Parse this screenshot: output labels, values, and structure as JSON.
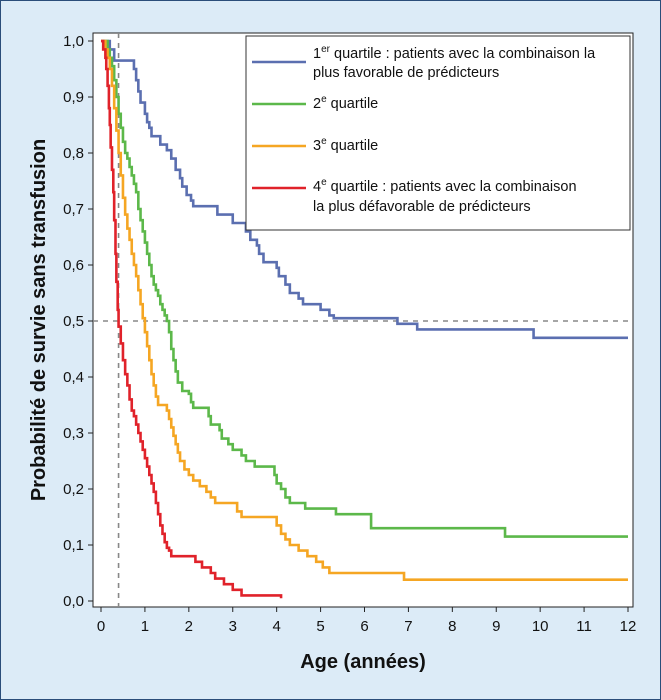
{
  "chart_data": {
    "type": "line",
    "step": true,
    "xlabel": "Age (années)",
    "ylabel": "Probabilité de survie sans transfusion",
    "xlim": [
      0,
      12
    ],
    "ylim": [
      0,
      1
    ],
    "x_ticks": [
      "0",
      "1",
      "2",
      "3",
      "4",
      "5",
      "6",
      "7",
      "8",
      "9",
      "10",
      "11",
      "12"
    ],
    "y_ticks": [
      "0,0",
      "0,1",
      "0,2",
      "0,3",
      "0,4",
      "0,5",
      "0,6",
      "0,7",
      "0,8",
      "0,9",
      "1,0"
    ],
    "reference_lines": {
      "y_median": 0.5,
      "x_median_worst": 0.4
    },
    "legend_position": "top-right",
    "series": [
      {
        "name_parts": [
          "1",
          "er",
          " quartile : patients avec la combinaison la",
          "plus favorable de prédicteurs"
        ],
        "color": "#5b6fb0",
        "points": [
          [
            0,
            1.0
          ],
          [
            0.2,
            0.985
          ],
          [
            0.3,
            0.965
          ],
          [
            0.7,
            0.965
          ],
          [
            0.75,
            0.95
          ],
          [
            0.8,
            0.93
          ],
          [
            0.85,
            0.91
          ],
          [
            0.9,
            0.89
          ],
          [
            1.0,
            0.87
          ],
          [
            1.05,
            0.855
          ],
          [
            1.1,
            0.845
          ],
          [
            1.15,
            0.83
          ],
          [
            1.3,
            0.83
          ],
          [
            1.35,
            0.815
          ],
          [
            1.5,
            0.805
          ],
          [
            1.6,
            0.79
          ],
          [
            1.7,
            0.77
          ],
          [
            1.8,
            0.755
          ],
          [
            1.85,
            0.74
          ],
          [
            1.95,
            0.725
          ],
          [
            2.05,
            0.715
          ],
          [
            2.1,
            0.705
          ],
          [
            2.6,
            0.705
          ],
          [
            2.65,
            0.69
          ],
          [
            2.95,
            0.69
          ],
          [
            3.0,
            0.675
          ],
          [
            3.3,
            0.66
          ],
          [
            3.4,
            0.645
          ],
          [
            3.55,
            0.635
          ],
          [
            3.6,
            0.62
          ],
          [
            3.7,
            0.605
          ],
          [
            4.0,
            0.595
          ],
          [
            4.05,
            0.58
          ],
          [
            4.2,
            0.565
          ],
          [
            4.3,
            0.55
          ],
          [
            4.5,
            0.54
          ],
          [
            4.6,
            0.53
          ],
          [
            5.0,
            0.52
          ],
          [
            5.2,
            0.51
          ],
          [
            5.3,
            0.505
          ],
          [
            6.7,
            0.505
          ],
          [
            6.75,
            0.495
          ],
          [
            7.15,
            0.495
          ],
          [
            7.2,
            0.485
          ],
          [
            9.8,
            0.485
          ],
          [
            9.85,
            0.47
          ],
          [
            12.0,
            0.47
          ]
        ]
      },
      {
        "name_parts": [
          "2",
          "e",
          " quartile",
          ""
        ],
        "color": "#5cb84a",
        "points": [
          [
            0,
            1.0
          ],
          [
            0.15,
            0.985
          ],
          [
            0.2,
            0.97
          ],
          [
            0.25,
            0.955
          ],
          [
            0.3,
            0.93
          ],
          [
            0.35,
            0.9
          ],
          [
            0.4,
            0.87
          ],
          [
            0.45,
            0.845
          ],
          [
            0.5,
            0.82
          ],
          [
            0.55,
            0.8
          ],
          [
            0.6,
            0.79
          ],
          [
            0.65,
            0.775
          ],
          [
            0.7,
            0.76
          ],
          [
            0.75,
            0.745
          ],
          [
            0.8,
            0.73
          ],
          [
            0.85,
            0.7
          ],
          [
            0.9,
            0.68
          ],
          [
            0.95,
            0.66
          ],
          [
            1.0,
            0.64
          ],
          [
            1.05,
            0.62
          ],
          [
            1.1,
            0.6
          ],
          [
            1.15,
            0.58
          ],
          [
            1.2,
            0.565
          ],
          [
            1.25,
            0.555
          ],
          [
            1.3,
            0.545
          ],
          [
            1.35,
            0.53
          ],
          [
            1.4,
            0.52
          ],
          [
            1.45,
            0.51
          ],
          [
            1.5,
            0.5
          ],
          [
            1.55,
            0.48
          ],
          [
            1.6,
            0.45
          ],
          [
            1.65,
            0.43
          ],
          [
            1.7,
            0.41
          ],
          [
            1.75,
            0.39
          ],
          [
            1.85,
            0.375
          ],
          [
            2.0,
            0.37
          ],
          [
            2.05,
            0.355
          ],
          [
            2.1,
            0.345
          ],
          [
            2.4,
            0.345
          ],
          [
            2.45,
            0.33
          ],
          [
            2.5,
            0.315
          ],
          [
            2.7,
            0.305
          ],
          [
            2.75,
            0.29
          ],
          [
            2.9,
            0.28
          ],
          [
            3.0,
            0.27
          ],
          [
            3.2,
            0.26
          ],
          [
            3.3,
            0.25
          ],
          [
            3.5,
            0.24
          ],
          [
            3.9,
            0.24
          ],
          [
            3.95,
            0.225
          ],
          [
            4.0,
            0.21
          ],
          [
            4.1,
            0.2
          ],
          [
            4.2,
            0.185
          ],
          [
            4.3,
            0.175
          ],
          [
            4.6,
            0.175
          ],
          [
            4.65,
            0.165
          ],
          [
            5.3,
            0.165
          ],
          [
            5.35,
            0.155
          ],
          [
            6.1,
            0.155
          ],
          [
            6.15,
            0.13
          ],
          [
            9.15,
            0.13
          ],
          [
            9.2,
            0.115
          ],
          [
            12.0,
            0.115
          ]
        ]
      },
      {
        "name_parts": [
          "3",
          "e",
          " quartile",
          ""
        ],
        "color": "#f5a623",
        "points": [
          [
            0,
            1.0
          ],
          [
            0.1,
            0.985
          ],
          [
            0.15,
            0.97
          ],
          [
            0.2,
            0.95
          ],
          [
            0.25,
            0.92
          ],
          [
            0.3,
            0.88
          ],
          [
            0.35,
            0.84
          ],
          [
            0.4,
            0.8
          ],
          [
            0.45,
            0.76
          ],
          [
            0.5,
            0.72
          ],
          [
            0.55,
            0.69
          ],
          [
            0.6,
            0.665
          ],
          [
            0.65,
            0.645
          ],
          [
            0.7,
            0.62
          ],
          [
            0.75,
            0.6
          ],
          [
            0.8,
            0.58
          ],
          [
            0.85,
            0.555
          ],
          [
            0.9,
            0.53
          ],
          [
            0.95,
            0.505
          ],
          [
            1.0,
            0.48
          ],
          [
            1.05,
            0.455
          ],
          [
            1.1,
            0.43
          ],
          [
            1.15,
            0.405
          ],
          [
            1.2,
            0.385
          ],
          [
            1.25,
            0.365
          ],
          [
            1.3,
            0.35
          ],
          [
            1.5,
            0.34
          ],
          [
            1.55,
            0.325
          ],
          [
            1.6,
            0.31
          ],
          [
            1.65,
            0.295
          ],
          [
            1.7,
            0.28
          ],
          [
            1.75,
            0.265
          ],
          [
            1.8,
            0.25
          ],
          [
            1.9,
            0.235
          ],
          [
            2.0,
            0.225
          ],
          [
            2.1,
            0.215
          ],
          [
            2.25,
            0.205
          ],
          [
            2.4,
            0.195
          ],
          [
            2.5,
            0.185
          ],
          [
            2.6,
            0.175
          ],
          [
            3.0,
            0.175
          ],
          [
            3.1,
            0.16
          ],
          [
            3.2,
            0.15
          ],
          [
            3.9,
            0.15
          ],
          [
            4.0,
            0.135
          ],
          [
            4.1,
            0.12
          ],
          [
            4.2,
            0.11
          ],
          [
            4.3,
            0.1
          ],
          [
            4.5,
            0.09
          ],
          [
            4.7,
            0.08
          ],
          [
            4.9,
            0.07
          ],
          [
            5.05,
            0.06
          ],
          [
            5.2,
            0.05
          ],
          [
            6.85,
            0.05
          ],
          [
            6.9,
            0.038
          ],
          [
            12.0,
            0.038
          ]
        ]
      },
      {
        "name_parts": [
          "4",
          "e",
          " quartile : patients avec la combinaison",
          "la plus défavorable de prédicteurs"
        ],
        "color": "#e0222a",
        "points": [
          [
            0,
            1.0
          ],
          [
            0.05,
            0.985
          ],
          [
            0.1,
            0.97
          ],
          [
            0.12,
            0.95
          ],
          [
            0.15,
            0.92
          ],
          [
            0.18,
            0.88
          ],
          [
            0.2,
            0.85
          ],
          [
            0.22,
            0.81
          ],
          [
            0.25,
            0.77
          ],
          [
            0.28,
            0.73
          ],
          [
            0.3,
            0.68
          ],
          [
            0.33,
            0.62
          ],
          [
            0.35,
            0.57
          ],
          [
            0.38,
            0.52
          ],
          [
            0.4,
            0.49
          ],
          [
            0.45,
            0.46
          ],
          [
            0.5,
            0.43
          ],
          [
            0.55,
            0.405
          ],
          [
            0.6,
            0.385
          ],
          [
            0.65,
            0.36
          ],
          [
            0.7,
            0.34
          ],
          [
            0.75,
            0.33
          ],
          [
            0.8,
            0.315
          ],
          [
            0.85,
            0.3
          ],
          [
            0.9,
            0.285
          ],
          [
            0.95,
            0.27
          ],
          [
            1.0,
            0.255
          ],
          [
            1.05,
            0.24
          ],
          [
            1.1,
            0.225
          ],
          [
            1.15,
            0.21
          ],
          [
            1.2,
            0.195
          ],
          [
            1.25,
            0.175
          ],
          [
            1.3,
            0.155
          ],
          [
            1.35,
            0.135
          ],
          [
            1.4,
            0.12
          ],
          [
            1.45,
            0.105
          ],
          [
            1.5,
            0.095
          ],
          [
            1.55,
            0.09
          ],
          [
            1.6,
            0.08
          ],
          [
            2.1,
            0.08
          ],
          [
            2.15,
            0.07
          ],
          [
            2.3,
            0.06
          ],
          [
            2.5,
            0.05
          ],
          [
            2.6,
            0.04
          ],
          [
            2.8,
            0.03
          ],
          [
            3.0,
            0.02
          ],
          [
            3.2,
            0.01
          ],
          [
            3.3,
            0.01
          ],
          [
            4.05,
            0.01
          ],
          [
            4.1,
            0.005
          ]
        ]
      }
    ]
  }
}
